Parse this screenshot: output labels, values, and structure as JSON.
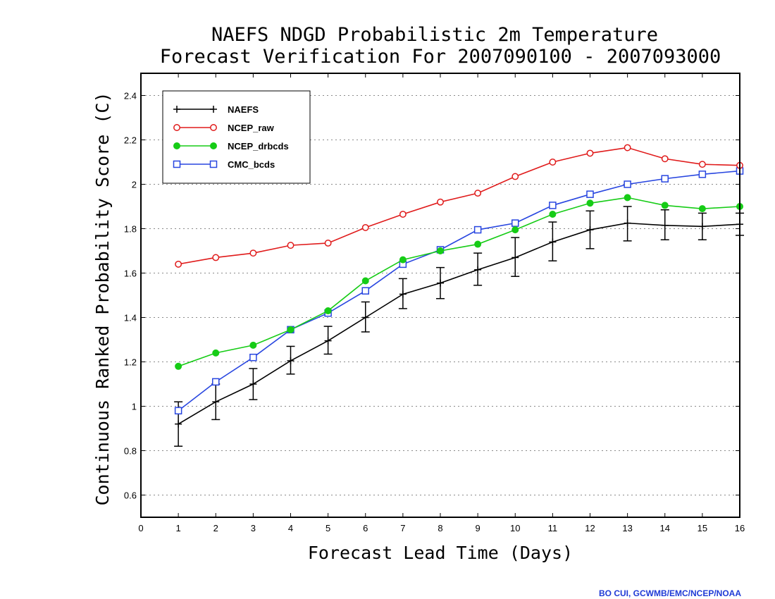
{
  "chart_data": {
    "type": "line",
    "title": "NAEFS NDGD Probabilistic 2m Temperature",
    "subtitle": "Forecast Verification For 2007090100 - 2007093000",
    "xlabel": "Forecast Lead Time (Days)",
    "ylabel": "Continuous Ranked Probability Score (C)",
    "xlim": [
      0,
      16
    ],
    "ylim": [
      0.5,
      2.5
    ],
    "xticks": [
      0,
      1,
      2,
      3,
      4,
      5,
      6,
      7,
      8,
      9,
      10,
      11,
      12,
      13,
      14,
      15,
      16
    ],
    "yticks": [
      0.6,
      0.8,
      1,
      1.2,
      1.4,
      1.6,
      1.8,
      2,
      2.2,
      2.4
    ],
    "ytick_labels": [
      "0.6",
      "0.8",
      "1",
      "1.2",
      "1.4",
      "1.6",
      "1.8",
      "2",
      "2.2",
      "2.4"
    ],
    "grid": "horizontal dotted",
    "legend_position": "top-left",
    "x": [
      1,
      2,
      3,
      4,
      5,
      6,
      7,
      8,
      9,
      10,
      11,
      12,
      13,
      14,
      15,
      16
    ],
    "series": [
      {
        "name": "NAEFS",
        "color": "#000000",
        "marker": "plus",
        "values": [
          0.92,
          1.02,
          1.1,
          1.205,
          1.295,
          1.4,
          1.505,
          1.555,
          1.615,
          1.67,
          1.74,
          1.795,
          1.825,
          1.815,
          1.81,
          1.82
        ],
        "error_low": [
          0.82,
          0.94,
          1.03,
          1.145,
          1.235,
          1.335,
          1.44,
          1.485,
          1.545,
          1.585,
          1.655,
          1.71,
          1.745,
          1.75,
          1.75,
          1.77
        ],
        "error_high": [
          1.02,
          1.1,
          1.17,
          1.27,
          1.36,
          1.47,
          1.575,
          1.625,
          1.69,
          1.76,
          1.83,
          1.88,
          1.9,
          1.885,
          1.87,
          1.87
        ]
      },
      {
        "name": "NCEP_raw",
        "color": "#e01b1b",
        "marker": "open-circle",
        "values": [
          1.64,
          1.67,
          1.69,
          1.725,
          1.735,
          1.805,
          1.865,
          1.92,
          1.96,
          2.035,
          2.1,
          2.14,
          2.165,
          2.115,
          2.09,
          2.085
        ]
      },
      {
        "name": "NCEP_drbcds",
        "color": "#16cc16",
        "marker": "filled-circle",
        "values": [
          1.18,
          1.24,
          1.275,
          1.345,
          1.43,
          1.565,
          1.66,
          1.7,
          1.73,
          1.795,
          1.865,
          1.915,
          1.94,
          1.905,
          1.89,
          1.9
        ]
      },
      {
        "name": "CMC_bcds",
        "color": "#2846e0",
        "marker": "open-square",
        "values": [
          0.98,
          1.11,
          1.22,
          1.345,
          1.42,
          1.52,
          1.64,
          1.705,
          1.795,
          1.825,
          1.905,
          1.955,
          2.0,
          2.025,
          2.045,
          2.06
        ]
      }
    ]
  },
  "credit": "BO CUI, GCWMB/EMC/NCEP/NOAA"
}
